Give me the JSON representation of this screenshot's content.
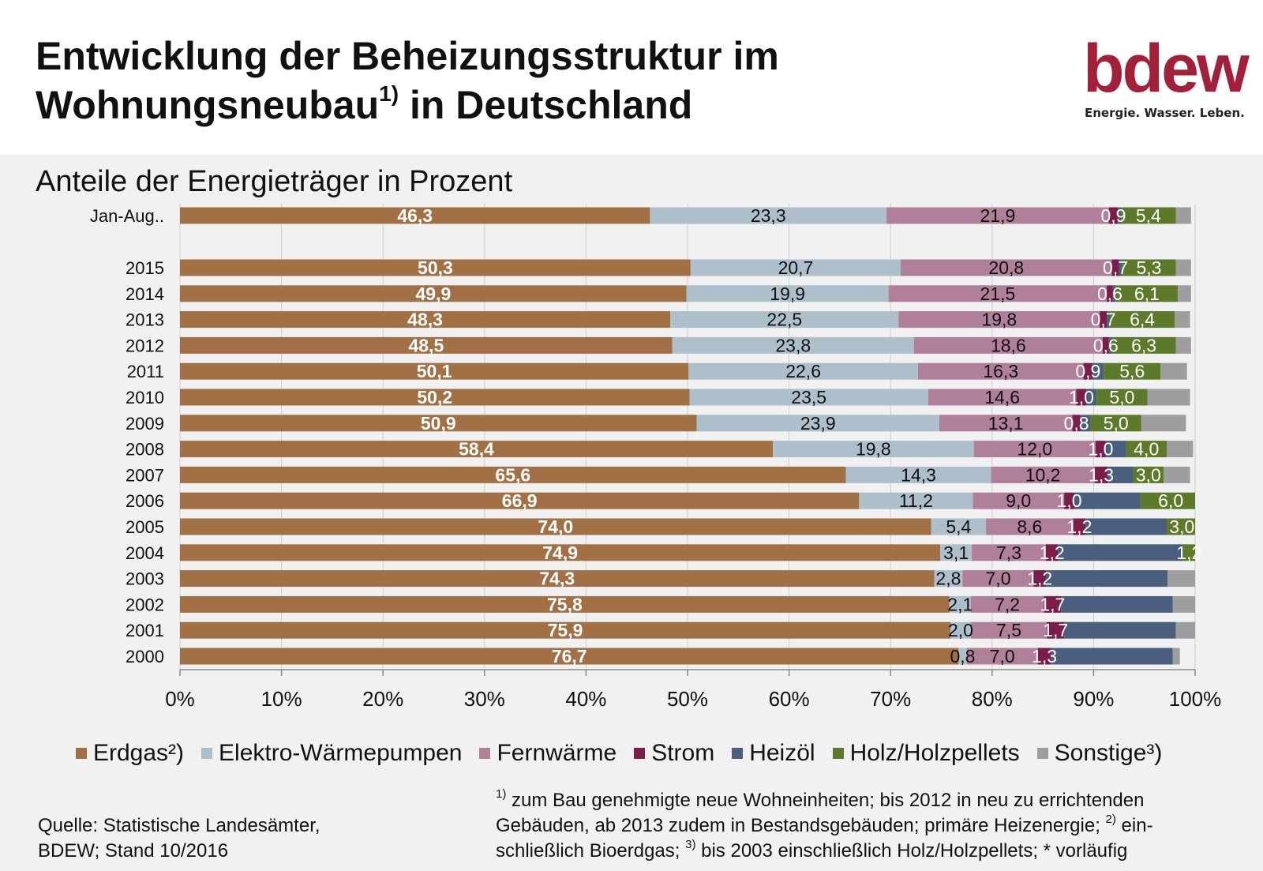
{
  "header": {
    "title_line1": "Entwicklung der Beheizungsstruktur im",
    "title_line2_text": "Wohnungsneubau",
    "title_line2_sup": "1)",
    "title_line2_rest": " in Deutschland",
    "subtitle": "Anteile der Energieträger in Prozent"
  },
  "logo": {
    "word": "bdew",
    "tagline": "Energie. Wasser. Leben.",
    "color": "#a3203a"
  },
  "chart_data": {
    "type": "bar",
    "orientation": "horizontal",
    "stacked": true,
    "categories": [
      "Jan-Aug..",
      "2015",
      "2014",
      "2013",
      "2012",
      "2011",
      "2010",
      "2009",
      "2008",
      "2007",
      "2006",
      "2005",
      "2004",
      "2003",
      "2002",
      "2001",
      "2000"
    ],
    "x_ticks": [
      "0%",
      "10%",
      "20%",
      "30%",
      "40%",
      "50%",
      "60%",
      "70%",
      "80%",
      "90%",
      "100%"
    ],
    "xlim": [
      0,
      100
    ],
    "grid": "vertical",
    "legend_position": "bottom",
    "series": [
      {
        "name": "Erdgas²)",
        "color": "#a17044",
        "label_color": "#ffffff",
        "label_bold": true,
        "values": [
          46.3,
          50.3,
          49.9,
          48.3,
          48.5,
          50.1,
          50.2,
          50.9,
          58.4,
          65.6,
          66.9,
          74.0,
          74.9,
          74.3,
          75.8,
          75.9,
          76.7
        ],
        "labels": [
          "46,3",
          "50,3",
          "49,9",
          "48,3",
          "48,5",
          "50,1",
          "50,2",
          "50,9",
          "58,4",
          "65,6",
          "66,9",
          "74,0",
          "74,9",
          "74,3",
          "75,8",
          "75,9",
          "76,7"
        ]
      },
      {
        "name": "Elektro-Wärmepumpen",
        "color": "#aebfcc",
        "label_color": "#111111",
        "label_bold": false,
        "values": [
          23.3,
          20.7,
          19.9,
          22.5,
          23.8,
          22.6,
          23.5,
          23.9,
          19.8,
          14.3,
          11.2,
          5.4,
          3.1,
          2.8,
          2.1,
          2.0,
          0.8
        ],
        "labels": [
          "23,3",
          "20,7",
          "19,9",
          "22,5",
          "23,8",
          "22,6",
          "23,5",
          "23,9",
          "19,8",
          "14,3",
          "11,2",
          "5,4",
          "3,1",
          "2,8",
          "2,1",
          "2,0",
          "0,8"
        ]
      },
      {
        "name": "Fernwärme",
        "color": "#b0809a",
        "label_color": "#111111",
        "label_bold": false,
        "values": [
          21.9,
          20.8,
          21.5,
          19.8,
          18.6,
          16.3,
          14.6,
          13.1,
          12.0,
          10.2,
          9.0,
          8.6,
          7.3,
          7.0,
          7.2,
          7.5,
          7.0
        ],
        "labels": [
          "21,9",
          "20,8",
          "21,5",
          "19,8",
          "18,6",
          "16,3",
          "14,6",
          "13,1",
          "12,0",
          "10,2",
          "9,0",
          "8,6",
          "7,3",
          "7,0",
          "7,2",
          "7,5",
          "7,0"
        ]
      },
      {
        "name": "Strom",
        "color": "#7a1d48",
        "label_color": "#ffffff",
        "label_bold": false,
        "values": [
          0.9,
          0.7,
          0.6,
          0.7,
          0.6,
          0.9,
          1.0,
          0.8,
          1.0,
          1.3,
          1.0,
          1.2,
          1.2,
          1.2,
          1.7,
          1.7,
          1.3
        ],
        "labels": [
          "0,9",
          "0,7",
          "0,6",
          "0,7",
          "0,6",
          "0,9",
          "1,0",
          "0,8",
          "1,0",
          "1,3",
          "1,0",
          "1,2",
          "1,2",
          "1,2",
          "1,7",
          "1,7",
          "1,3"
        ]
      },
      {
        "name": "Heizöl",
        "color": "#4a5f7d",
        "label_color": "#ffffff",
        "label_bold": false,
        "values": [
          0.3,
          0.3,
          0.3,
          0.3,
          0.3,
          1.1,
          1.0,
          1.0,
          2.0,
          2.5,
          6.5,
          8.0,
          12.3,
          12.0,
          11.0,
          11.0,
          12.0
        ],
        "labels": [
          "",
          "",
          "",
          "",
          "",
          "",
          "",
          "",
          "",
          "",
          "",
          "",
          "",
          "",
          "",
          "",
          ""
        ]
      },
      {
        "name": "Holz/Holzpellets",
        "color": "#5d7a2a",
        "label_color": "#ffffff",
        "label_bold": false,
        "values": [
          5.4,
          5.3,
          6.1,
          6.4,
          6.3,
          5.6,
          5.0,
          5.0,
          4.0,
          3.0,
          6.0,
          3.0,
          1.2,
          0,
          0,
          0,
          0
        ],
        "labels": [
          "5,4",
          "5,3",
          "6,1",
          "6,4",
          "6,3",
          "5,6",
          "5,0",
          "5,0",
          "4,0",
          "3,0",
          "6,0",
          "3,0",
          "1,2",
          "",
          "",
          "",
          ""
        ]
      },
      {
        "name": "Sonstige³)",
        "color": "#9e9e9e",
        "label_color": "#111111",
        "label_bold": false,
        "values": [
          1.5,
          1.5,
          1.3,
          1.5,
          1.5,
          2.6,
          4.2,
          4.4,
          2.6,
          2.6,
          1.8,
          1.8,
          0.7,
          2.7,
          2.2,
          1.9,
          0.7
        ],
        "labels": [
          "",
          "",
          "",
          "",
          "",
          "",
          "",
          "",
          "",
          "",
          "",
          "",
          "",
          "",
          "",
          "",
          ""
        ]
      }
    ]
  },
  "source": {
    "line1": "Quelle: Statistische Landesämter,",
    "line2": "BDEW; Stand 10/2016"
  },
  "footnotes": {
    "s1": "1)",
    "l1": " zum Bau genehmigte neue Wohneinheiten; bis 2012 in neu zu errichtenden",
    "l2a": "Gebäuden, ab 2013 zudem in Bestandsgebäuden; primäre Heizenergie; ",
    "s2": "2)",
    "l2b": " ein-",
    "l3a": "schließlich Bioerdgas;  ",
    "s3": "3)",
    "l3b": " bis 2003 einschließlich Holz/Holzpellets; * vorläufig"
  }
}
